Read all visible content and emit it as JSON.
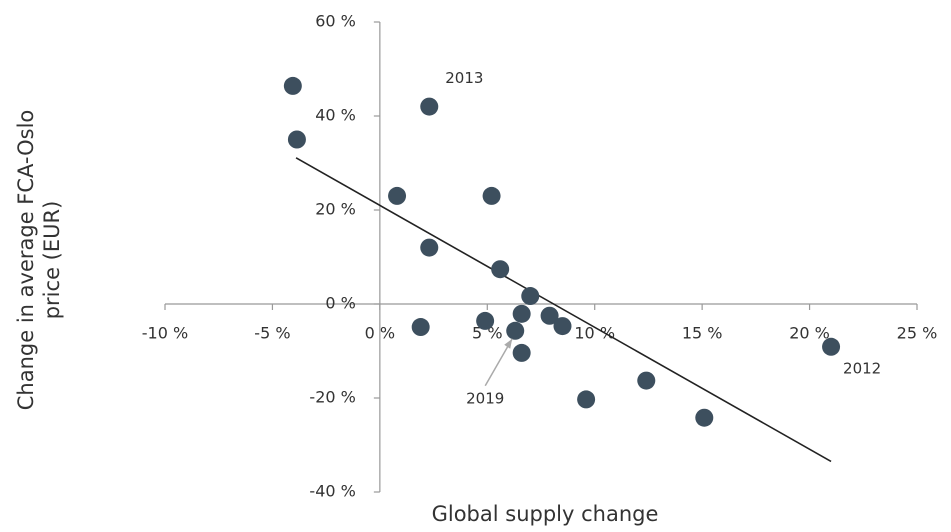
{
  "chart_data": {
    "type": "scatter",
    "xlabel": "Global supply change",
    "ylabel": [
      "Change in average FCA-Oslo",
      "price (EUR)"
    ],
    "xlim": [
      -10,
      25
    ],
    "ylim": [
      -40,
      60
    ],
    "xticks": [
      {
        "value": -10,
        "label": "-10 %"
      },
      {
        "value": -5,
        "label": "-5 %"
      },
      {
        "value": 0,
        "label": "0 %"
      },
      {
        "value": 5,
        "label": "5 %"
      },
      {
        "value": 10,
        "label": "10 %"
      },
      {
        "value": 15,
        "label": "15 %"
      },
      {
        "value": 20,
        "label": "20 %"
      },
      {
        "value": 25,
        "label": "25 %"
      }
    ],
    "yticks": [
      {
        "value": -40,
        "label": "-40 %"
      },
      {
        "value": -20,
        "label": "-20 %"
      },
      {
        "value": 0,
        "label": "0 %"
      },
      {
        "value": 20,
        "label": "20 %"
      },
      {
        "value": 40,
        "label": "40 %"
      },
      {
        "value": 60,
        "label": "60 %"
      }
    ],
    "color": "#3d4f5e",
    "x": [
      -4.05,
      -3.86,
      0.8,
      2.3,
      2.3,
      5.2,
      5.6,
      7.0,
      1.9,
      4.9,
      6.3,
      6.6,
      6.6,
      7.9,
      8.5,
      9.6,
      12.4,
      15.1,
      21.0
    ],
    "y": [
      46.4,
      35,
      23,
      42,
      12,
      23,
      7.4,
      1.7,
      -4.9,
      -3.6,
      -5.7,
      -2.1,
      -10.4,
      -2.5,
      -4.7,
      -20.3,
      -16.3,
      -24.2,
      -9.1
    ],
    "trendline": {
      "x": [
        -3.9,
        21.0
      ],
      "y": [
        31.1,
        -33.5
      ]
    },
    "annotations": [
      {
        "text": "2013",
        "x": 2.3,
        "y": 42
      },
      {
        "text": "2012",
        "x": 21.0,
        "y": -9.1
      },
      {
        "text": "2019",
        "x": 6.3,
        "y": -5.7
      }
    ]
  }
}
